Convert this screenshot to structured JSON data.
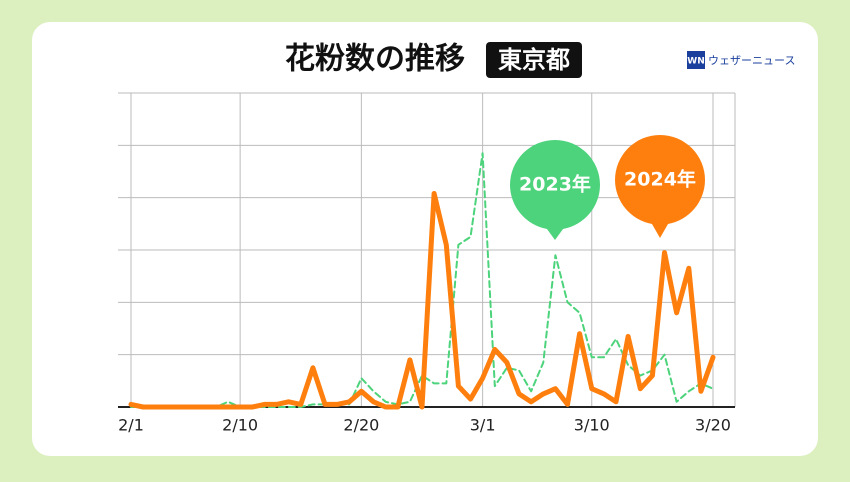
{
  "chart_data": {
    "type": "line",
    "title": "花粉数の推移",
    "region": "東京都",
    "categories": [
      "2/1",
      null,
      null,
      null,
      null,
      null,
      null,
      null,
      null,
      "2/10",
      null,
      null,
      null,
      null,
      null,
      null,
      null,
      null,
      null,
      "2/20",
      null,
      null,
      null,
      null,
      null,
      null,
      null,
      null,
      null,
      "3/1",
      null,
      null,
      null,
      null,
      null,
      null,
      null,
      null,
      "3/10",
      null,
      null,
      null,
      null,
      null,
      null,
      null,
      null,
      null,
      "3/20"
    ],
    "series": [
      {
        "name": "2023年",
        "color": "#4cd37b",
        "dash": true,
        "values": [
          0,
          0,
          0,
          0,
          0,
          0,
          0,
          0,
          0.1,
          0,
          0,
          0,
          0,
          0,
          0,
          0.05,
          0.05,
          0.05,
          0.05,
          0.55,
          0.3,
          0.1,
          0.05,
          0.1,
          0.6,
          0.45,
          0.45,
          3.1,
          3.25,
          4.85,
          0.4,
          0.75,
          0.7,
          0.3,
          0.85,
          2.9,
          2.0,
          1.8,
          0.95,
          0.95,
          1.3,
          0.8,
          0.6,
          0.7,
          1.0,
          0.1,
          0.3,
          0.45,
          0.35
        ]
      },
      {
        "name": "2024年",
        "color": "#ff7f0e",
        "dash": false,
        "values": [
          0.05,
          0,
          0,
          0,
          0,
          0,
          0,
          0,
          0,
          0,
          0,
          0.05,
          0.05,
          0.1,
          0.05,
          0.75,
          0.05,
          0.05,
          0.1,
          0.3,
          0.1,
          0,
          0,
          0.9,
          0,
          4.08,
          3.1,
          0.4,
          0.15,
          0.55,
          1.1,
          0.85,
          0.25,
          0.1,
          0.25,
          0.35,
          0.05,
          1.4,
          0.35,
          0.25,
          0.1,
          1.35,
          0.35,
          0.6,
          2.95,
          1.8,
          2.65,
          0.3,
          0.95
        ]
      }
    ],
    "ylim": [
      0,
      6
    ],
    "yticks": [
      0,
      1,
      2,
      3,
      4,
      5,
      6
    ],
    "grid": true
  },
  "logo": {
    "mark": "WN",
    "text": "ウェザーニュース"
  }
}
